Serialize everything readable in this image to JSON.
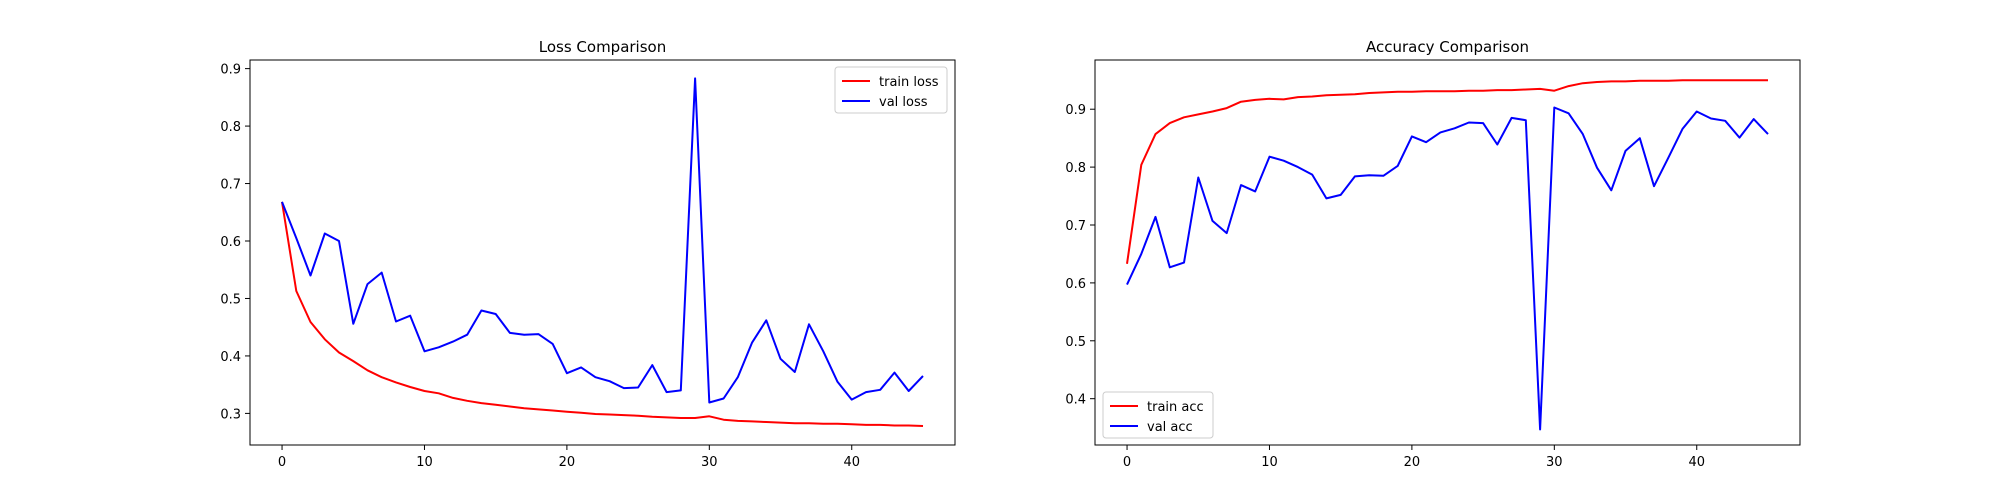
{
  "chart_data": [
    {
      "type": "line",
      "title": "Loss Comparison",
      "xlabel": "",
      "ylabel": "",
      "xlim": [
        -2.25,
        47.25
      ],
      "ylim": [
        0.245,
        0.915
      ],
      "xticks": [
        0,
        10,
        20,
        30,
        40
      ],
      "yticks": [
        0.3,
        0.4,
        0.5,
        0.6,
        0.7,
        0.8,
        0.9
      ],
      "grid": false,
      "legend_position": "top-right",
      "x": [
        0,
        1,
        2,
        3,
        4,
        5,
        6,
        7,
        8,
        9,
        10,
        11,
        12,
        13,
        14,
        15,
        16,
        17,
        18,
        19,
        20,
        21,
        22,
        23,
        24,
        25,
        26,
        27,
        28,
        29,
        30,
        31,
        32,
        33,
        34,
        35,
        36,
        37,
        38,
        39,
        40,
        41,
        42,
        43,
        44,
        45
      ],
      "series": [
        {
          "name": "train loss",
          "color": "#ff0000",
          "values": [
            0.668,
            0.513,
            0.459,
            0.429,
            0.406,
            0.391,
            0.375,
            0.363,
            0.354,
            0.346,
            0.339,
            0.335,
            0.327,
            0.322,
            0.318,
            0.315,
            0.312,
            0.309,
            0.307,
            0.305,
            0.303,
            0.301,
            0.299,
            0.298,
            0.297,
            0.296,
            0.294,
            0.293,
            0.292,
            0.292,
            0.295,
            0.289,
            0.287,
            0.286,
            0.285,
            0.284,
            0.283,
            0.283,
            0.282,
            0.282,
            0.281,
            0.28,
            0.28,
            0.279,
            0.279,
            0.278
          ]
        },
        {
          "name": "val loss",
          "color": "#0000ff",
          "values": [
            0.668,
            0.605,
            0.54,
            0.613,
            0.6,
            0.456,
            0.525,
            0.545,
            0.46,
            0.47,
            0.408,
            0.415,
            0.425,
            0.437,
            0.479,
            0.473,
            0.44,
            0.437,
            0.438,
            0.421,
            0.37,
            0.38,
            0.363,
            0.356,
            0.344,
            0.345,
            0.384,
            0.337,
            0.34,
            0.883,
            0.319,
            0.326,
            0.363,
            0.423,
            0.462,
            0.395,
            0.372,
            0.455,
            0.408,
            0.355,
            0.324,
            0.337,
            0.341,
            0.371,
            0.339,
            0.365
          ]
        }
      ]
    },
    {
      "type": "line",
      "title": "Accuracy Comparison",
      "xlabel": "",
      "ylabel": "",
      "xlim": [
        -2.25,
        47.25
      ],
      "ylim": [
        0.32,
        0.985
      ],
      "xticks": [
        0,
        10,
        20,
        30,
        40
      ],
      "yticks": [
        0.4,
        0.5,
        0.6,
        0.7,
        0.8,
        0.9
      ],
      "grid": false,
      "legend_position": "bottom-left",
      "x": [
        0,
        1,
        2,
        3,
        4,
        5,
        6,
        7,
        8,
        9,
        10,
        11,
        12,
        13,
        14,
        15,
        16,
        17,
        18,
        19,
        20,
        21,
        22,
        23,
        24,
        25,
        26,
        27,
        28,
        29,
        30,
        31,
        32,
        33,
        34,
        35,
        36,
        37,
        38,
        39,
        40,
        41,
        42,
        43,
        44,
        45
      ],
      "series": [
        {
          "name": "train acc",
          "color": "#ff0000",
          "values": [
            0.633,
            0.804,
            0.857,
            0.876,
            0.886,
            0.891,
            0.896,
            0.902,
            0.913,
            0.916,
            0.918,
            0.917,
            0.921,
            0.922,
            0.924,
            0.925,
            0.926,
            0.928,
            0.929,
            0.93,
            0.93,
            0.931,
            0.931,
            0.931,
            0.932,
            0.932,
            0.933,
            0.933,
            0.934,
            0.935,
            0.932,
            0.94,
            0.945,
            0.947,
            0.948,
            0.948,
            0.949,
            0.949,
            0.949,
            0.95,
            0.95,
            0.95,
            0.95,
            0.95,
            0.95,
            0.95
          ]
        },
        {
          "name": "val acc",
          "color": "#0000ff",
          "values": [
            0.597,
            0.65,
            0.714,
            0.627,
            0.635,
            0.782,
            0.707,
            0.686,
            0.769,
            0.758,
            0.818,
            0.811,
            0.8,
            0.787,
            0.746,
            0.752,
            0.784,
            0.786,
            0.785,
            0.802,
            0.853,
            0.843,
            0.86,
            0.867,
            0.877,
            0.876,
            0.839,
            0.885,
            0.881,
            0.347,
            0.903,
            0.893,
            0.857,
            0.799,
            0.76,
            0.828,
            0.85,
            0.767,
            0.816,
            0.866,
            0.896,
            0.884,
            0.88,
            0.851,
            0.883,
            0.857
          ]
        }
      ]
    }
  ]
}
